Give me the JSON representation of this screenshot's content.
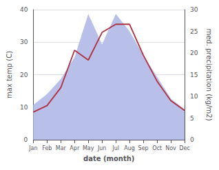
{
  "chart_data": {
    "type": "line",
    "xlabel": "date (month)",
    "ylabel": "max temp (C)",
    "y2label": "med. precipitation (kg/m2)",
    "categories": [
      "Jan",
      "Feb",
      "Mar",
      "Apr",
      "May",
      "Jun",
      "Jul",
      "Aug",
      "Sep",
      "Oct",
      "Nov",
      "Dec"
    ],
    "series": [
      {
        "type": "area",
        "axis": "y2",
        "color": "#b8bfe8",
        "values": [
          8.0,
          10.5,
          14.0,
          19.0,
          29.0,
          22.0,
          29.0,
          25.0,
          19.5,
          14.5,
          9.5,
          7.0
        ]
      },
      {
        "type": "line",
        "color": "#b03040",
        "values": [
          8.5,
          10.5,
          16.0,
          27.5,
          24.5,
          33.0,
          35.5,
          35.5,
          26.0,
          18.0,
          12.0,
          9.0
        ]
      }
    ],
    "ylim": [
      0,
      40
    ],
    "yticks": [
      0,
      10,
      20,
      30,
      40
    ],
    "y2lim": [
      0,
      30
    ],
    "y2ticks": [
      0,
      5,
      10,
      15,
      20,
      25,
      30
    ],
    "grid": true
  }
}
